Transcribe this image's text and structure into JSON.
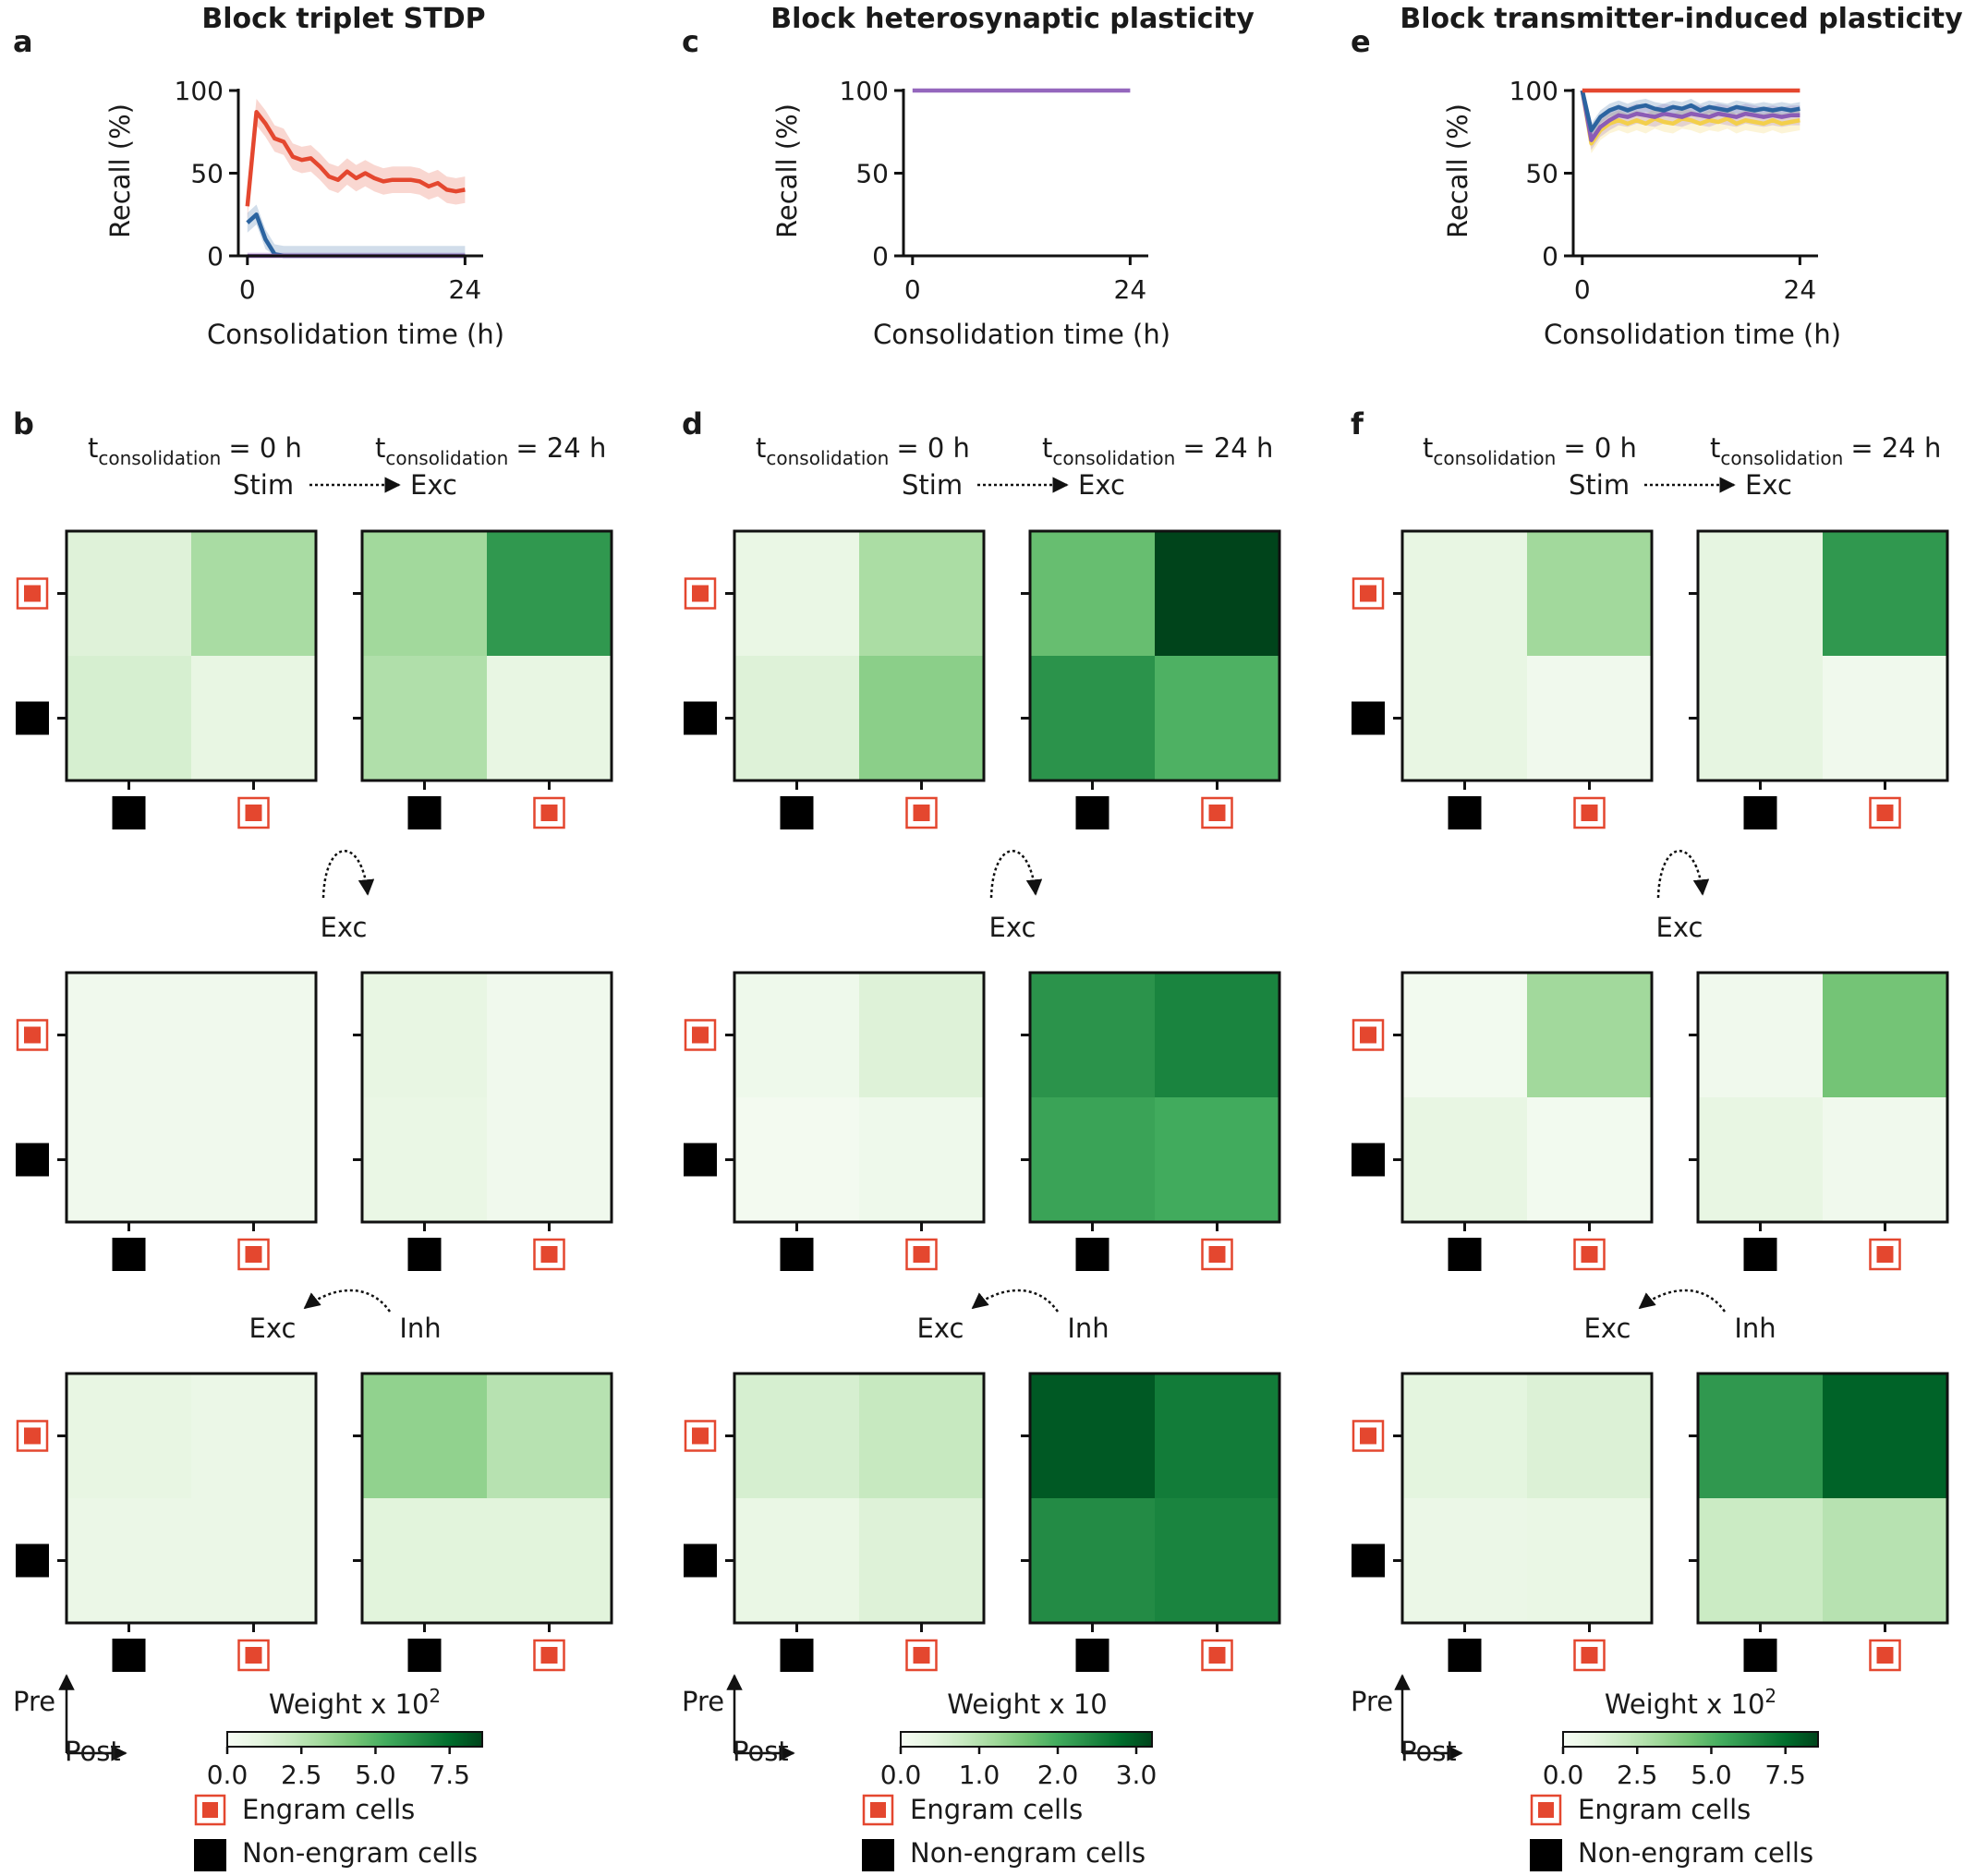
{
  "chart_data": [
    {
      "type": "line",
      "panel": "a",
      "title": "Block triplet STDP",
      "xlabel": "Consolidation time (h)",
      "ylabel": "Recall (%)",
      "xlim": [
        -1,
        26
      ],
      "ylim": [
        0,
        100
      ],
      "xticks": [
        0,
        24
      ],
      "yticks": [
        0,
        50,
        100
      ],
      "x": [
        0,
        1,
        2,
        3,
        4,
        5,
        6,
        7,
        8,
        9,
        10,
        11,
        12,
        13,
        14,
        15,
        16,
        17,
        18,
        19,
        20,
        21,
        22,
        23,
        24
      ],
      "series": [
        {
          "name": "engram",
          "color": "#e4472f",
          "band": 8,
          "values": [
            30,
            87,
            80,
            71,
            69,
            60,
            58,
            59,
            54,
            48,
            46,
            51,
            47,
            50,
            47,
            45,
            46,
            46,
            46,
            45,
            42,
            44,
            40,
            39,
            40
          ]
        },
        {
          "name": "blue",
          "color": "#2c64a0",
          "band": 6,
          "values": [
            20,
            25,
            10,
            1,
            0,
            0,
            0,
            0,
            0,
            0,
            0,
            0,
            0,
            0,
            0,
            0,
            0,
            0,
            0,
            0,
            0,
            0,
            0,
            0,
            0
          ]
        },
        {
          "name": "purple",
          "color": "#9467bd",
          "band": 2,
          "values": [
            0,
            0,
            0,
            0,
            0,
            0,
            0,
            0,
            0,
            0,
            0,
            0,
            0,
            0,
            0,
            0,
            0,
            0,
            0,
            0,
            0,
            0,
            0,
            0,
            0
          ]
        }
      ]
    },
    {
      "type": "line",
      "panel": "c",
      "title": "Block heterosynaptic plasticity",
      "xlabel": "Consolidation time (h)",
      "ylabel": "Recall (%)",
      "xlim": [
        -1,
        26
      ],
      "ylim": [
        0,
        100
      ],
      "xticks": [
        0,
        24
      ],
      "yticks": [
        0,
        50,
        100
      ],
      "x": [
        0,
        24
      ],
      "series": [
        {
          "name": "purple",
          "color": "#9467bd",
          "band": 0,
          "values": [
            100,
            100
          ]
        }
      ]
    },
    {
      "type": "line",
      "panel": "e",
      "title": "Block transmitter-induced plasticity",
      "xlabel": "Consolidation time (h)",
      "ylabel": "Recall (%)",
      "xlim": [
        -1,
        26
      ],
      "ylim": [
        0,
        100
      ],
      "xticks": [
        0,
        24
      ],
      "yticks": [
        0,
        50,
        100
      ],
      "x": [
        0,
        1,
        2,
        3,
        4,
        5,
        6,
        7,
        8,
        9,
        10,
        11,
        12,
        13,
        14,
        15,
        16,
        17,
        18,
        19,
        20,
        21,
        22,
        23,
        24
      ],
      "series": [
        {
          "name": "yellow",
          "color": "#f3cf4b",
          "band": 6,
          "values": [
            100,
            68,
            76,
            80,
            82,
            80,
            82,
            80,
            83,
            81,
            80,
            83,
            82,
            80,
            82,
            81,
            83,
            80,
            82,
            81,
            80,
            82,
            80,
            81,
            82
          ]
        },
        {
          "name": "purple",
          "color": "#8b5cb6",
          "band": 6,
          "values": [
            100,
            70,
            78,
            82,
            85,
            84,
            86,
            85,
            84,
            86,
            85,
            84,
            86,
            85,
            84,
            86,
            85,
            84,
            86,
            85,
            84,
            85,
            84,
            85,
            85
          ]
        },
        {
          "name": "blue",
          "color": "#2c64a0",
          "band": 4,
          "values": [
            100,
            76,
            84,
            88,
            90,
            88,
            90,
            91,
            89,
            88,
            90,
            89,
            91,
            88,
            90,
            89,
            88,
            90,
            89,
            88,
            89,
            88,
            89,
            88,
            89
          ]
        },
        {
          "name": "engram",
          "color": "#e4472f",
          "band": 0,
          "values": [
            100,
            100,
            100,
            100,
            100,
            100,
            100,
            100,
            100,
            100,
            100,
            100,
            100,
            100,
            100,
            100,
            100,
            100,
            100,
            100,
            100,
            100,
            100,
            100,
            100
          ]
        }
      ]
    },
    {
      "type": "heatmap",
      "panel": "b",
      "header": {
        "t_left": "t",
        "t_left_sub": "consolidation",
        "t_left_val": "= 0 h",
        "t_right": "t",
        "t_right_sub": "consolidation",
        "t_right_val": "= 24 h",
        "stim": "Stim",
        "exc": "Exc"
      },
      "flow_labels": {
        "row1_to_row2": "Exc",
        "row2_exc": "Exc",
        "row2_inh": "Inh"
      },
      "axes_hint": {
        "pre": "Pre",
        "post": "Post"
      },
      "colorbar": {
        "label": "Weight x 10",
        "exponent": "2",
        "min": 0,
        "max": 8.6,
        "ticks": [
          0,
          2.5,
          5,
          7.5
        ],
        "tick_labels": [
          "0.0",
          "2.5",
          "5.0",
          "7.5"
        ]
      },
      "rows": [
        "engram",
        "non-engram"
      ],
      "cols": [
        "non-engram",
        "engram"
      ],
      "matrices": [
        [
          [
            [
              1.3,
              3.0
            ],
            [
              1.6,
              0.9
            ]
          ],
          [
            [
              3.2,
              6.0
            ],
            [
              2.8,
              0.9
            ]
          ]
        ],
        [
          [
            [
              0.4,
              0.4
            ],
            [
              0.4,
              0.4
            ]
          ],
          [
            [
              0.9,
              0.4
            ],
            [
              0.8,
              0.4
            ]
          ]
        ],
        [
          [
            [
              0.9,
              0.7
            ],
            [
              0.7,
              0.7
            ]
          ],
          [
            [
              3.6,
              2.6
            ],
            [
              1.2,
              1.2
            ]
          ]
        ]
      ]
    },
    {
      "type": "heatmap",
      "panel": "d",
      "header": {
        "t_left": "t",
        "t_left_sub": "consolidation",
        "t_left_val": "= 0 h",
        "t_right": "t",
        "t_right_sub": "consolidation",
        "t_right_val": "= 24 h",
        "stim": "Stim",
        "exc": "Exc"
      },
      "flow_labels": {
        "row1_to_row2": "Exc",
        "row2_exc": "Exc",
        "row2_inh": "Inh"
      },
      "axes_hint": {
        "pre": "Pre",
        "post": "Post"
      },
      "colorbar": {
        "label": "Weight x 10",
        "exponent": "",
        "min": 0,
        "max": 3.2,
        "ticks": [
          0,
          1,
          2,
          3
        ],
        "tick_labels": [
          "0.0",
          "1.0",
          "2.0",
          "3.0"
        ]
      },
      "rows": [
        "engram",
        "non-engram"
      ],
      "cols": [
        "non-engram",
        "engram"
      ],
      "matrices": [
        [
          [
            [
              0.3,
              1.1
            ],
            [
              0.5,
              1.4
            ]
          ],
          [
            [
              1.7,
              3.2
            ],
            [
              2.3,
              1.9
            ]
          ]
        ],
        [
          [
            [
              0.2,
              0.5
            ],
            [
              0.1,
              0.2
            ]
          ],
          [
            [
              2.3,
              2.5
            ],
            [
              2.1,
              2.0
            ]
          ]
        ],
        [
          [
            [
              0.6,
              0.8
            ],
            [
              0.3,
              0.5
            ]
          ],
          [
            [
              3.0,
              2.6
            ],
            [
              2.4,
              2.5
            ]
          ]
        ]
      ]
    },
    {
      "type": "heatmap",
      "panel": "f",
      "header": {
        "t_left": "t",
        "t_left_sub": "consolidation",
        "t_left_val": "= 0 h",
        "t_right": "t",
        "t_right_sub": "consolidation",
        "t_right_val": "= 24 h",
        "stim": "Stim",
        "exc": "Exc"
      },
      "flow_labels": {
        "row1_to_row2": "Exc",
        "row2_exc": "Exc",
        "row2_inh": "Inh"
      },
      "axes_hint": {
        "pre": "Pre",
        "post": "Post"
      },
      "colorbar": {
        "label": "Weight x 10",
        "exponent": "2",
        "min": 0,
        "max": 8.6,
        "ticks": [
          0,
          2.5,
          5,
          7.5
        ],
        "tick_labels": [
          "0.0",
          "2.5",
          "5.0",
          "7.5"
        ]
      },
      "rows": [
        "engram",
        "non-engram"
      ],
      "cols": [
        "non-engram",
        "engram"
      ],
      "matrices": [
        [
          [
            [
              0.9,
              3.2
            ],
            [
              0.9,
              0.4
            ]
          ],
          [
            [
              1.0,
              6.0
            ],
            [
              1.0,
              0.4
            ]
          ]
        ],
        [
          [
            [
              0.3,
              3.2
            ],
            [
              0.9,
              0.3
            ]
          ],
          [
            [
              0.4,
              4.3
            ],
            [
              0.9,
              0.4
            ]
          ]
        ],
        [
          [
            [
              1.1,
              1.4
            ],
            [
              0.7,
              0.8
            ]
          ],
          [
            [
              6.0,
              7.8
            ],
            [
              2.0,
              2.6
            ]
          ]
        ]
      ]
    }
  ],
  "legend": {
    "engram": "Engram cells",
    "non_engram": "Non-engram cells"
  }
}
